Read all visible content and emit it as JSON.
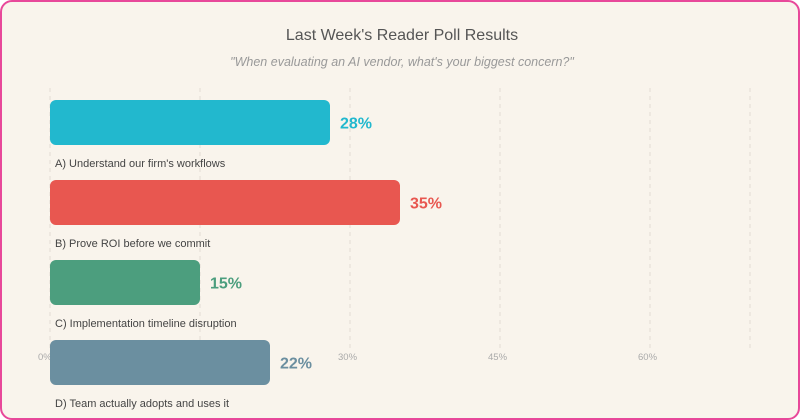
{
  "title": "Last Week's Reader Poll Results",
  "subtitle": "\"When evaluating an AI vendor, what's your biggest concern?\"",
  "chart_data": {
    "type": "bar",
    "orientation": "horizontal",
    "title": "Last Week's Reader Poll Results",
    "subtitle": "\"When evaluating an AI vendor, what's your biggest concern?\"",
    "categories": [
      "A) Understand our firm's workflows",
      "B) Prove ROI before we commit",
      "C) Implementation timeline disruption",
      "D) Team actually adopts and uses it"
    ],
    "values": [
      28,
      35,
      15,
      22
    ],
    "value_labels": [
      "28%",
      "35%",
      "15%",
      "22%"
    ],
    "colors": [
      "#22b8ce",
      "#e85750",
      "#4c9e7e",
      "#6b8fa0"
    ],
    "x_ticks": [
      {
        "value": 0,
        "label": "0%"
      },
      {
        "value": 15,
        "label": ""
      },
      {
        "value": 30,
        "label": "30%"
      },
      {
        "value": 45,
        "label": "45%"
      },
      {
        "value": 60,
        "label": "60%"
      },
      {
        "value": 70,
        "label": ""
      }
    ],
    "xlim": [
      0,
      70
    ],
    "grid": true,
    "xlabel": "",
    "ylabel": ""
  }
}
